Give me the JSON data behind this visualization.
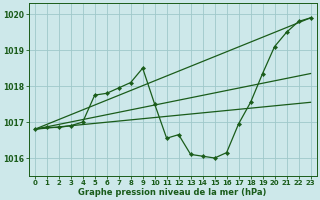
{
  "title": "Graphe pression niveau de la mer (hPa)",
  "bg_color": "#cde8ea",
  "line_color": "#1a5c1a",
  "grid_color": "#9fc8ca",
  "xlim": [
    -0.5,
    23.5
  ],
  "ylim": [
    1015.5,
    1020.3
  ],
  "yticks": [
    1016,
    1017,
    1018,
    1019,
    1020
  ],
  "xticks": [
    0,
    1,
    2,
    3,
    4,
    5,
    6,
    7,
    8,
    9,
    10,
    11,
    12,
    13,
    14,
    15,
    16,
    17,
    18,
    19,
    20,
    21,
    22,
    23
  ],
  "main_series": {
    "x": [
      0,
      1,
      2,
      3,
      4,
      5,
      6,
      7,
      8,
      9,
      10,
      11,
      12,
      13,
      14,
      15,
      16,
      17,
      18,
      19,
      20,
      21,
      22,
      23
    ],
    "y": [
      1016.8,
      1016.85,
      1016.85,
      1016.9,
      1017.0,
      1017.75,
      1017.8,
      1017.95,
      1018.1,
      1018.5,
      1017.5,
      1016.55,
      1016.65,
      1016.1,
      1016.05,
      1016.0,
      1016.15,
      1016.95,
      1017.55,
      1018.35,
      1019.1,
      1019.5,
      1019.8,
      1019.9
    ]
  },
  "trend_lines": [
    {
      "x": [
        0,
        23
      ],
      "y": [
        1016.8,
        1019.9
      ]
    },
    {
      "x": [
        0,
        23
      ],
      "y": [
        1016.8,
        1018.35
      ]
    },
    {
      "x": [
        0,
        23
      ],
      "y": [
        1016.8,
        1017.55
      ]
    }
  ]
}
